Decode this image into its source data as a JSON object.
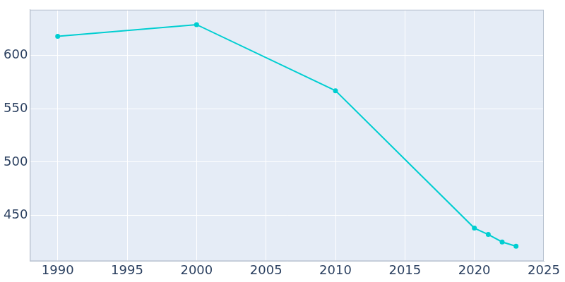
{
  "chart_data": {
    "type": "line",
    "x": [
      1990,
      2000,
      2010,
      2020,
      2021,
      2022,
      2023
    ],
    "values": [
      618,
      629,
      567,
      438,
      432,
      425,
      421
    ],
    "color": "#00ced1",
    "marker": "circle",
    "xlim": [
      1988,
      2025
    ],
    "xticks": [
      1990,
      1995,
      2000,
      2005,
      2010,
      2015,
      2020,
      2025
    ],
    "ylim": [
      407,
      643
    ],
    "yticks": [
      450,
      500,
      550,
      600
    ],
    "grid": true
  }
}
